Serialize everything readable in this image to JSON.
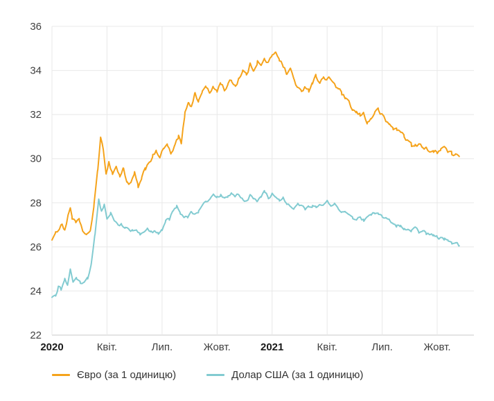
{
  "chart_data": {
    "type": "line",
    "title": "",
    "xlabel": "",
    "ylabel": "",
    "x_unit": "months_since_jan_2020",
    "x_range": [
      0,
      23
    ],
    "y_range": [
      22,
      36
    ],
    "y_ticks": [
      22,
      24,
      26,
      28,
      30,
      32,
      34,
      36
    ],
    "x_ticks": [
      {
        "pos": 0,
        "label": "2020",
        "bold": true
      },
      {
        "pos": 3,
        "label": "Квіт.",
        "bold": false
      },
      {
        "pos": 6,
        "label": "Лип.",
        "bold": false
      },
      {
        "pos": 9,
        "label": "Жовт.",
        "bold": false
      },
      {
        "pos": 12,
        "label": "2021",
        "bold": true
      },
      {
        "pos": 15,
        "label": "Квіт.",
        "bold": false
      },
      {
        "pos": 18,
        "label": "Лип.",
        "bold": false
      },
      {
        "pos": 21,
        "label": "Жовт.",
        "bold": false
      }
    ],
    "grid": true,
    "legend_position": "bottom",
    "series": [
      {
        "name": "Євро (за 1 одиницю)",
        "color": "#F5A31B",
        "jitter": 0.1,
        "points": [
          [
            0,
            26.4
          ],
          [
            0.2,
            26.55
          ],
          [
            0.4,
            26.9
          ],
          [
            0.55,
            27.05
          ],
          [
            0.7,
            26.8
          ],
          [
            0.9,
            27.45
          ],
          [
            1.0,
            27.8
          ],
          [
            1.1,
            27.35
          ],
          [
            1.3,
            27.05
          ],
          [
            1.5,
            27.15
          ],
          [
            1.7,
            26.7
          ],
          [
            1.9,
            26.45
          ],
          [
            2.1,
            26.8
          ],
          [
            2.3,
            27.9
          ],
          [
            2.5,
            29.6
          ],
          [
            2.65,
            30.9
          ],
          [
            2.8,
            30.3
          ],
          [
            2.95,
            29.4
          ],
          [
            3.1,
            29.85
          ],
          [
            3.3,
            29.35
          ],
          [
            3.5,
            29.65
          ],
          [
            3.7,
            29.2
          ],
          [
            3.9,
            29.55
          ],
          [
            4.1,
            28.95
          ],
          [
            4.3,
            28.85
          ],
          [
            4.5,
            29.3
          ],
          [
            4.7,
            28.7
          ],
          [
            4.9,
            29.05
          ],
          [
            5.1,
            29.55
          ],
          [
            5.3,
            29.9
          ],
          [
            5.5,
            30.1
          ],
          [
            5.7,
            30.3
          ],
          [
            5.9,
            30.1
          ],
          [
            6.1,
            30.45
          ],
          [
            6.3,
            30.6
          ],
          [
            6.5,
            30.15
          ],
          [
            6.7,
            30.55
          ],
          [
            6.9,
            31.0
          ],
          [
            7.05,
            30.65
          ],
          [
            7.25,
            32.05
          ],
          [
            7.45,
            32.65
          ],
          [
            7.6,
            32.35
          ],
          [
            7.8,
            33.0
          ],
          [
            8.0,
            32.6
          ],
          [
            8.2,
            33.05
          ],
          [
            8.4,
            33.3
          ],
          [
            8.6,
            32.95
          ],
          [
            8.8,
            33.2
          ],
          [
            9.0,
            33.1
          ],
          [
            9.2,
            33.45
          ],
          [
            9.4,
            33.15
          ],
          [
            9.6,
            33.35
          ],
          [
            9.8,
            33.55
          ],
          [
            10.0,
            33.3
          ],
          [
            10.2,
            33.7
          ],
          [
            10.4,
            34.0
          ],
          [
            10.6,
            33.8
          ],
          [
            10.8,
            34.25
          ],
          [
            11.0,
            34.05
          ],
          [
            11.2,
            34.45
          ],
          [
            11.4,
            34.2
          ],
          [
            11.6,
            34.5
          ],
          [
            11.8,
            34.35
          ],
          [
            12.0,
            34.6
          ],
          [
            12.2,
            34.9
          ],
          [
            12.4,
            34.55
          ],
          [
            12.6,
            34.2
          ],
          [
            12.8,
            33.85
          ],
          [
            13.0,
            34.05
          ],
          [
            13.2,
            33.6
          ],
          [
            13.4,
            33.2
          ],
          [
            13.6,
            32.95
          ],
          [
            13.8,
            33.35
          ],
          [
            14.0,
            33.1
          ],
          [
            14.2,
            33.5
          ],
          [
            14.4,
            33.75
          ],
          [
            14.6,
            33.5
          ],
          [
            14.8,
            33.65
          ],
          [
            15.0,
            33.55
          ],
          [
            15.2,
            33.6
          ],
          [
            15.4,
            33.4
          ],
          [
            15.6,
            33.15
          ],
          [
            15.8,
            32.95
          ],
          [
            16.0,
            32.7
          ],
          [
            16.2,
            32.45
          ],
          [
            16.4,
            32.2
          ],
          [
            16.6,
            32.05
          ],
          [
            16.8,
            31.95
          ],
          [
            17.0,
            32.05
          ],
          [
            17.2,
            31.65
          ],
          [
            17.4,
            31.8
          ],
          [
            17.6,
            32.15
          ],
          [
            17.8,
            32.2
          ],
          [
            18.0,
            31.95
          ],
          [
            18.2,
            31.7
          ],
          [
            18.4,
            31.55
          ],
          [
            18.6,
            31.4
          ],
          [
            18.8,
            31.3
          ],
          [
            19.0,
            31.2
          ],
          [
            19.2,
            31.05
          ],
          [
            19.4,
            30.85
          ],
          [
            19.6,
            30.6
          ],
          [
            19.8,
            30.55
          ],
          [
            20.0,
            30.65
          ],
          [
            20.2,
            30.45
          ],
          [
            20.4,
            30.55
          ],
          [
            20.6,
            30.35
          ],
          [
            20.8,
            30.25
          ],
          [
            21.0,
            30.35
          ],
          [
            21.2,
            30.5
          ],
          [
            21.4,
            30.55
          ],
          [
            21.6,
            30.3
          ],
          [
            21.8,
            30.2
          ],
          [
            22.0,
            30.25
          ],
          [
            22.2,
            30.1
          ]
        ]
      },
      {
        "name": "Долар США (за 1 одиницю)",
        "color": "#82CBD1",
        "jitter": 0.07,
        "points": [
          [
            0,
            23.65
          ],
          [
            0.2,
            23.75
          ],
          [
            0.35,
            24.2
          ],
          [
            0.5,
            24.05
          ],
          [
            0.7,
            24.55
          ],
          [
            0.85,
            24.3
          ],
          [
            1.0,
            25.0
          ],
          [
            1.15,
            24.45
          ],
          [
            1.35,
            24.55
          ],
          [
            1.55,
            24.35
          ],
          [
            1.75,
            24.45
          ],
          [
            1.95,
            24.6
          ],
          [
            2.15,
            25.2
          ],
          [
            2.35,
            26.6
          ],
          [
            2.55,
            28.2
          ],
          [
            2.7,
            27.6
          ],
          [
            2.85,
            27.9
          ],
          [
            3.0,
            27.3
          ],
          [
            3.2,
            27.55
          ],
          [
            3.4,
            27.1
          ],
          [
            3.6,
            26.95
          ],
          [
            3.8,
            27.05
          ],
          [
            4.0,
            26.9
          ],
          [
            4.2,
            26.8
          ],
          [
            4.4,
            26.75
          ],
          [
            4.6,
            26.7
          ],
          [
            4.8,
            26.6
          ],
          [
            5.0,
            26.7
          ],
          [
            5.2,
            26.75
          ],
          [
            5.4,
            26.65
          ],
          [
            5.6,
            26.7
          ],
          [
            5.8,
            26.6
          ],
          [
            6.0,
            26.75
          ],
          [
            6.2,
            27.15
          ],
          [
            6.4,
            27.25
          ],
          [
            6.6,
            27.7
          ],
          [
            6.8,
            27.85
          ],
          [
            7.0,
            27.5
          ],
          [
            7.2,
            27.4
          ],
          [
            7.4,
            27.35
          ],
          [
            7.6,
            27.6
          ],
          [
            7.8,
            27.45
          ],
          [
            8.0,
            27.6
          ],
          [
            8.2,
            27.85
          ],
          [
            8.4,
            28.05
          ],
          [
            8.6,
            28.15
          ],
          [
            8.8,
            28.3
          ],
          [
            9.0,
            28.3
          ],
          [
            9.2,
            28.35
          ],
          [
            9.4,
            28.2
          ],
          [
            9.6,
            28.3
          ],
          [
            9.8,
            28.45
          ],
          [
            10.0,
            28.3
          ],
          [
            10.2,
            28.4
          ],
          [
            10.4,
            28.15
          ],
          [
            10.6,
            28.05
          ],
          [
            10.8,
            28.35
          ],
          [
            11.0,
            28.2
          ],
          [
            11.2,
            28.1
          ],
          [
            11.4,
            28.35
          ],
          [
            11.6,
            28.5
          ],
          [
            11.8,
            28.25
          ],
          [
            12.0,
            28.35
          ],
          [
            12.2,
            28.2
          ],
          [
            12.4,
            28.05
          ],
          [
            12.6,
            28.2
          ],
          [
            12.8,
            27.95
          ],
          [
            13.0,
            27.9
          ],
          [
            13.2,
            27.8
          ],
          [
            13.4,
            27.95
          ],
          [
            13.6,
            27.85
          ],
          [
            13.8,
            27.75
          ],
          [
            14.0,
            27.85
          ],
          [
            14.2,
            27.9
          ],
          [
            14.4,
            27.8
          ],
          [
            14.6,
            27.9
          ],
          [
            14.8,
            27.85
          ],
          [
            15.0,
            28.0
          ],
          [
            15.2,
            27.95
          ],
          [
            15.4,
            27.9
          ],
          [
            15.6,
            27.75
          ],
          [
            15.8,
            27.65
          ],
          [
            16.0,
            27.55
          ],
          [
            16.2,
            27.4
          ],
          [
            16.4,
            27.3
          ],
          [
            16.6,
            27.25
          ],
          [
            16.8,
            27.35
          ],
          [
            17.0,
            27.2
          ],
          [
            17.2,
            27.35
          ],
          [
            17.4,
            27.5
          ],
          [
            17.6,
            27.55
          ],
          [
            17.8,
            27.45
          ],
          [
            18.0,
            27.35
          ],
          [
            18.2,
            27.25
          ],
          [
            18.4,
            27.15
          ],
          [
            18.6,
            27.05
          ],
          [
            18.8,
            26.95
          ],
          [
            19.0,
            26.9
          ],
          [
            19.2,
            26.8
          ],
          [
            19.4,
            26.75
          ],
          [
            19.6,
            26.7
          ],
          [
            19.8,
            26.8
          ],
          [
            20.0,
            26.7
          ],
          [
            20.2,
            26.65
          ],
          [
            20.4,
            26.6
          ],
          [
            20.6,
            26.55
          ],
          [
            20.8,
            26.5
          ],
          [
            21.0,
            26.45
          ],
          [
            21.2,
            26.4
          ],
          [
            21.4,
            26.35
          ],
          [
            21.6,
            26.3
          ],
          [
            21.8,
            26.2
          ],
          [
            22.0,
            26.15
          ],
          [
            22.2,
            26.05
          ]
        ]
      }
    ]
  }
}
